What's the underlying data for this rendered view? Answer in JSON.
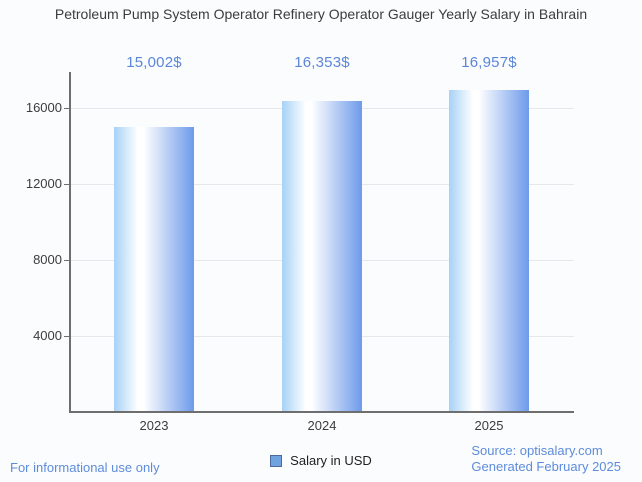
{
  "title": "Petroleum Pump System Operator Refinery Operator Gauger Yearly Salary in Bahrain",
  "chart_data": {
    "type": "bar",
    "title": "Petroleum Pump System Operator Refinery Operator Gauger Yearly Salary in Bahrain",
    "categories": [
      "2023",
      "2024",
      "2025"
    ],
    "series": [
      {
        "name": "Salary in USD",
        "values": [
          15002,
          16353,
          16957
        ]
      }
    ],
    "value_labels": [
      "15,002$",
      "16,353$",
      "16,957$"
    ],
    "yticks": [
      4000,
      8000,
      12000,
      16000
    ],
    "ylim": [
      0,
      17900
    ],
    "xlabel": "",
    "ylabel": "",
    "grid": true,
    "legend_position": "bottom"
  },
  "legend": {
    "label": "Salary in USD"
  },
  "footer": {
    "disclaimer": "For informational use only",
    "source": "Source: optisalary.com",
    "generated": "Generated February 2025"
  },
  "colors": {
    "title_text": "#3c3c3c",
    "axis_text": "#3d3d3d",
    "value_label_text": "#5b86d9",
    "footer_text": "#5e8cdb",
    "axis_line": "#6e6e6e",
    "gridline": "#e5e7ea",
    "bar_gradient": [
      "#a6d2f6",
      "#ffffff",
      "#6d9aea"
    ],
    "legend_swatch_fill": "#6fa3e0",
    "legend_swatch_border": "#4b6a9b"
  }
}
